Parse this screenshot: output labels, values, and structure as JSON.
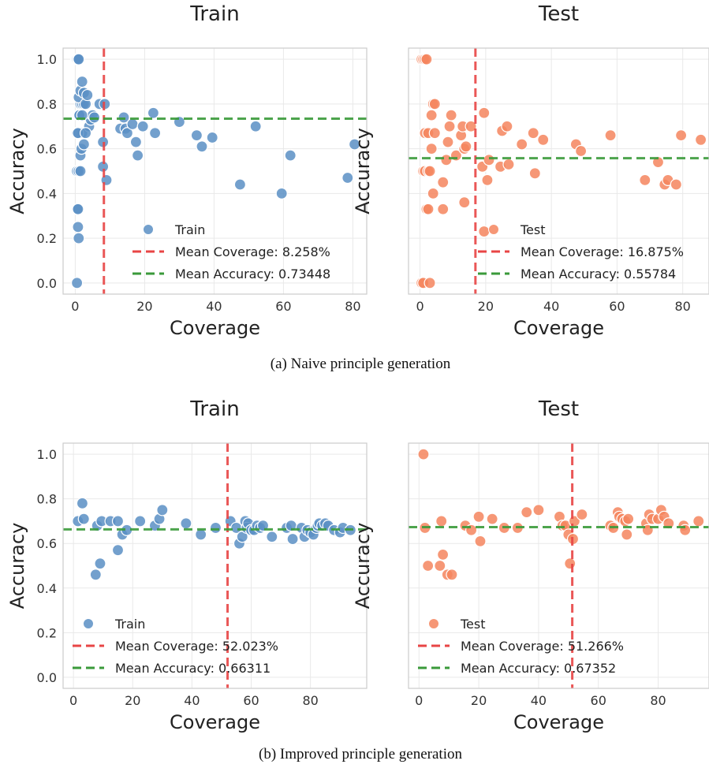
{
  "figure": {
    "caption_a": "(a) Naive principle generation",
    "caption_b": "(b) Improved principle generation"
  },
  "colors": {
    "train_points": "#5b8fc4",
    "test_points": "#f4855e",
    "mean_coverage_line": "#e84545",
    "mean_accuracy_line": "#3a9a3a"
  },
  "chart_data": [
    {
      "id": "a-train",
      "type": "scatter",
      "title": "Train",
      "xlabel": "Coverage",
      "ylabel": "Accuracy",
      "xlim": [
        -3.5,
        84
      ],
      "ylim": [
        -0.05,
        1.05
      ],
      "xticks": [
        "0",
        "20",
        "40",
        "60",
        "80"
      ],
      "xtick_values": [
        0,
        20,
        40,
        60,
        80
      ],
      "yticks": [
        "0.0",
        "0.2",
        "0.4",
        "0.6",
        "0.8",
        "1.0"
      ],
      "ytick_values": [
        0,
        0.2,
        0.4,
        0.6,
        0.8,
        1.0
      ],
      "show_yaxis": true,
      "grid": true,
      "color_key": "train_points",
      "mean_coverage": 8.258,
      "mean_accuracy": 0.73448,
      "legend": {
        "position": "lower-right",
        "series": "Train",
        "coverage_label": "Mean Coverage: 8.258%",
        "accuracy_label": "Mean Accuracy: 0.73448"
      },
      "points": [
        [
          0.3,
          1.0
        ],
        [
          0.5,
          1.0
        ],
        [
          0.8,
          1.0
        ],
        [
          1.0,
          1.0
        ],
        [
          0.5,
          0.0
        ],
        [
          0.6,
          0.33
        ],
        [
          0.8,
          0.33
        ],
        [
          0.8,
          0.25
        ],
        [
          1.0,
          0.2
        ],
        [
          0.5,
          0.5
        ],
        [
          1.0,
          0.5
        ],
        [
          1.5,
          0.5
        ],
        [
          1.5,
          0.57
        ],
        [
          1.8,
          0.6
        ],
        [
          2.0,
          0.67
        ],
        [
          2.5,
          0.62
        ],
        [
          0.5,
          0.67
        ],
        [
          0.8,
          0.67
        ],
        [
          1.0,
          0.75
        ],
        [
          1.2,
          0.75
        ],
        [
          1.5,
          0.8
        ],
        [
          2.0,
          0.8
        ],
        [
          2.5,
          0.8
        ],
        [
          1.0,
          0.83
        ],
        [
          1.5,
          0.86
        ],
        [
          2.0,
          0.9
        ],
        [
          2.5,
          0.85
        ],
        [
          3.0,
          0.8
        ],
        [
          3.5,
          0.84
        ],
        [
          4.0,
          0.7
        ],
        [
          4.5,
          0.73
        ],
        [
          5.0,
          0.75
        ],
        [
          5.5,
          0.74
        ],
        [
          3.0,
          0.67
        ],
        [
          2.0,
          0.75
        ],
        [
          7.0,
          0.8
        ],
        [
          8.5,
          0.8
        ],
        [
          8.0,
          0.63
        ],
        [
          8.0,
          0.52
        ],
        [
          9.0,
          0.46
        ],
        [
          13.0,
          0.69
        ],
        [
          14.0,
          0.74
        ],
        [
          14.5,
          0.69
        ],
        [
          15.0,
          0.67
        ],
        [
          16.5,
          0.71
        ],
        [
          17.5,
          0.63
        ],
        [
          18.0,
          0.57
        ],
        [
          19.5,
          0.7
        ],
        [
          22.5,
          0.76
        ],
        [
          23.0,
          0.67
        ],
        [
          30.0,
          0.72
        ],
        [
          35.0,
          0.66
        ],
        [
          36.5,
          0.61
        ],
        [
          39.5,
          0.65
        ],
        [
          47.5,
          0.44
        ],
        [
          52.0,
          0.7
        ],
        [
          59.5,
          0.4
        ],
        [
          62.0,
          0.57
        ],
        [
          78.5,
          0.47
        ],
        [
          80.5,
          0.62
        ]
      ]
    },
    {
      "id": "a-test",
      "type": "scatter",
      "title": "Test",
      "xlabel": "Coverage",
      "ylabel": "Accuracy",
      "xlim": [
        -3.5,
        88
      ],
      "ylim": [
        -0.05,
        1.05
      ],
      "xticks": [
        "0",
        "20",
        "40",
        "60",
        "80"
      ],
      "xtick_values": [
        0,
        20,
        40,
        60,
        80
      ],
      "yticks": [],
      "ytick_values": [
        0,
        0.2,
        0.4,
        0.6,
        0.8,
        1.0
      ],
      "show_yaxis": false,
      "grid": true,
      "color_key": "test_points",
      "mean_coverage": 16.875,
      "mean_accuracy": 0.55784,
      "legend": {
        "position": "lower-right",
        "series": "Test",
        "coverage_label": "Mean Coverage: 16.875%",
        "accuracy_label": "Mean Accuracy: 0.55784"
      },
      "points": [
        [
          0.5,
          1.0
        ],
        [
          1.0,
          1.0
        ],
        [
          1.5,
          1.0
        ],
        [
          2.0,
          1.0
        ],
        [
          0.5,
          0.0
        ],
        [
          1.0,
          0.0
        ],
        [
          3.0,
          0.0
        ],
        [
          1.0,
          0.5
        ],
        [
          1.5,
          0.5
        ],
        [
          2.5,
          0.5
        ],
        [
          3.0,
          0.5
        ],
        [
          2.0,
          0.33
        ],
        [
          2.5,
          0.33
        ],
        [
          1.5,
          0.67
        ],
        [
          2.5,
          0.67
        ],
        [
          3.5,
          0.6
        ],
        [
          4.0,
          0.4
        ],
        [
          4.5,
          0.67
        ],
        [
          3.5,
          0.75
        ],
        [
          4.0,
          0.8
        ],
        [
          4.5,
          0.8
        ],
        [
          7.0,
          0.33
        ],
        [
          7.0,
          0.45
        ],
        [
          8.0,
          0.55
        ],
        [
          8.5,
          0.63
        ],
        [
          9.0,
          0.7
        ],
        [
          9.5,
          0.75
        ],
        [
          11.0,
          0.57
        ],
        [
          12.5,
          0.66
        ],
        [
          13.0,
          0.7
        ],
        [
          13.5,
          0.6
        ],
        [
          13.5,
          0.36
        ],
        [
          14.0,
          0.61
        ],
        [
          15.5,
          0.7
        ],
        [
          19.0,
          0.52
        ],
        [
          19.5,
          0.76
        ],
        [
          20.5,
          0.46
        ],
        [
          21.0,
          0.55
        ],
        [
          19.5,
          0.23
        ],
        [
          24.5,
          0.52
        ],
        [
          25.0,
          0.68
        ],
        [
          26.5,
          0.7
        ],
        [
          27.0,
          0.53
        ],
        [
          31.0,
          0.62
        ],
        [
          34.5,
          0.67
        ],
        [
          35.0,
          0.49
        ],
        [
          37.5,
          0.64
        ],
        [
          47.5,
          0.62
        ],
        [
          49.0,
          0.59
        ],
        [
          58.0,
          0.66
        ],
        [
          68.5,
          0.46
        ],
        [
          72.5,
          0.54
        ],
        [
          74.5,
          0.44
        ],
        [
          75.5,
          0.46
        ],
        [
          78.0,
          0.44
        ],
        [
          79.5,
          0.66
        ],
        [
          85.5,
          0.64
        ]
      ]
    },
    {
      "id": "b-train",
      "type": "scatter",
      "title": "Train",
      "xlabel": "Coverage",
      "ylabel": "Accuracy",
      "xlim": [
        -3.5,
        99
      ],
      "ylim": [
        -0.05,
        1.05
      ],
      "xticks": [
        "0",
        "20",
        "40",
        "60",
        "80"
      ],
      "xtick_values": [
        0,
        20,
        40,
        60,
        80
      ],
      "yticks": [
        "0.0",
        "0.2",
        "0.4",
        "0.6",
        "0.8",
        "1.0"
      ],
      "ytick_values": [
        0,
        0.2,
        0.4,
        0.6,
        0.8,
        1.0
      ],
      "show_yaxis": true,
      "grid": true,
      "color_key": "train_points",
      "mean_coverage": 52.023,
      "mean_accuracy": 0.66311,
      "legend": {
        "position": "lower-left",
        "series": "Train",
        "coverage_label": "Mean Coverage: 52.023%",
        "accuracy_label": "Mean Accuracy: 0.66311"
      },
      "points": [
        [
          1.5,
          0.7
        ],
        [
          3.0,
          0.78
        ],
        [
          3.5,
          0.71
        ],
        [
          7.5,
          0.46
        ],
        [
          8.0,
          0.68
        ],
        [
          9.0,
          0.51
        ],
        [
          9.5,
          0.7
        ],
        [
          12.5,
          0.7
        ],
        [
          15.0,
          0.7
        ],
        [
          15.0,
          0.57
        ],
        [
          16.5,
          0.64
        ],
        [
          18.0,
          0.66
        ],
        [
          22.5,
          0.7
        ],
        [
          27.5,
          0.68
        ],
        [
          29.0,
          0.71
        ],
        [
          30.0,
          0.75
        ],
        [
          38.0,
          0.69
        ],
        [
          43.0,
          0.64
        ],
        [
          48.0,
          0.67
        ],
        [
          53.0,
          0.7
        ],
        [
          55.0,
          0.67
        ],
        [
          56.0,
          0.6
        ],
        [
          57.0,
          0.63
        ],
        [
          58.0,
          0.7
        ],
        [
          58.5,
          0.67
        ],
        [
          59.0,
          0.69
        ],
        [
          60.0,
          0.66
        ],
        [
          61.0,
          0.66
        ],
        [
          62.0,
          0.68
        ],
        [
          63.0,
          0.67
        ],
        [
          64.0,
          0.68
        ],
        [
          67.0,
          0.63
        ],
        [
          72.0,
          0.67
        ],
        [
          73.5,
          0.68
        ],
        [
          74.0,
          0.62
        ],
        [
          77.0,
          0.67
        ],
        [
          78.0,
          0.63
        ],
        [
          79.0,
          0.66
        ],
        [
          80.0,
          0.65
        ],
        [
          81.0,
          0.64
        ],
        [
          82.0,
          0.67
        ],
        [
          82.5,
          0.68
        ],
        [
          83.0,
          0.69
        ],
        [
          84.0,
          0.68
        ],
        [
          85.0,
          0.69
        ],
        [
          86.0,
          0.68
        ],
        [
          88.0,
          0.66
        ],
        [
          90.0,
          0.65
        ],
        [
          91.0,
          0.67
        ],
        [
          93.5,
          0.66
        ]
      ]
    },
    {
      "id": "b-test",
      "type": "scatter",
      "title": "Test",
      "xlabel": "Coverage",
      "ylabel": "Accuracy",
      "xlim": [
        -3.5,
        97
      ],
      "ylim": [
        -0.05,
        1.05
      ],
      "xticks": [
        "0",
        "20",
        "40",
        "60",
        "80"
      ],
      "xtick_values": [
        0,
        20,
        40,
        60,
        80
      ],
      "yticks": [],
      "ytick_values": [
        0,
        0.2,
        0.4,
        0.6,
        0.8,
        1.0
      ],
      "show_yaxis": false,
      "grid": true,
      "color_key": "test_points",
      "mean_coverage": 51.266,
      "mean_accuracy": 0.67352,
      "legend": {
        "position": "lower-left",
        "series": "Test",
        "coverage_label": "Mean Coverage: 51.266%",
        "accuracy_label": "Mean Accuracy: 0.67352"
      },
      "points": [
        [
          1.5,
          1.0
        ],
        [
          2.0,
          0.67
        ],
        [
          3.0,
          0.5
        ],
        [
          7.0,
          0.5
        ],
        [
          7.5,
          0.7
        ],
        [
          8.0,
          0.55
        ],
        [
          9.5,
          0.46
        ],
        [
          11.0,
          0.46
        ],
        [
          15.5,
          0.68
        ],
        [
          17.5,
          0.66
        ],
        [
          20.0,
          0.72
        ],
        [
          20.5,
          0.61
        ],
        [
          24.5,
          0.71
        ],
        [
          28.5,
          0.67
        ],
        [
          33.0,
          0.67
        ],
        [
          36.0,
          0.74
        ],
        [
          40.0,
          0.75
        ],
        [
          47.0,
          0.72
        ],
        [
          48.0,
          0.68
        ],
        [
          49.0,
          0.68
        ],
        [
          50.0,
          0.64
        ],
        [
          50.5,
          0.51
        ],
        [
          51.5,
          0.62
        ],
        [
          52.0,
          0.7
        ],
        [
          54.5,
          0.73
        ],
        [
          64.0,
          0.68
        ],
        [
          65.0,
          0.67
        ],
        [
          66.5,
          0.74
        ],
        [
          67.0,
          0.72
        ],
        [
          68.0,
          0.71
        ],
        [
          69.0,
          0.7
        ],
        [
          69.5,
          0.64
        ],
        [
          70.0,
          0.71
        ],
        [
          76.0,
          0.69
        ],
        [
          76.5,
          0.66
        ],
        [
          77.0,
          0.73
        ],
        [
          78.0,
          0.71
        ],
        [
          80.0,
          0.71
        ],
        [
          81.0,
          0.75
        ],
        [
          82.0,
          0.72
        ],
        [
          83.5,
          0.69
        ],
        [
          88.5,
          0.68
        ],
        [
          89.0,
          0.66
        ],
        [
          93.5,
          0.7
        ]
      ]
    }
  ]
}
